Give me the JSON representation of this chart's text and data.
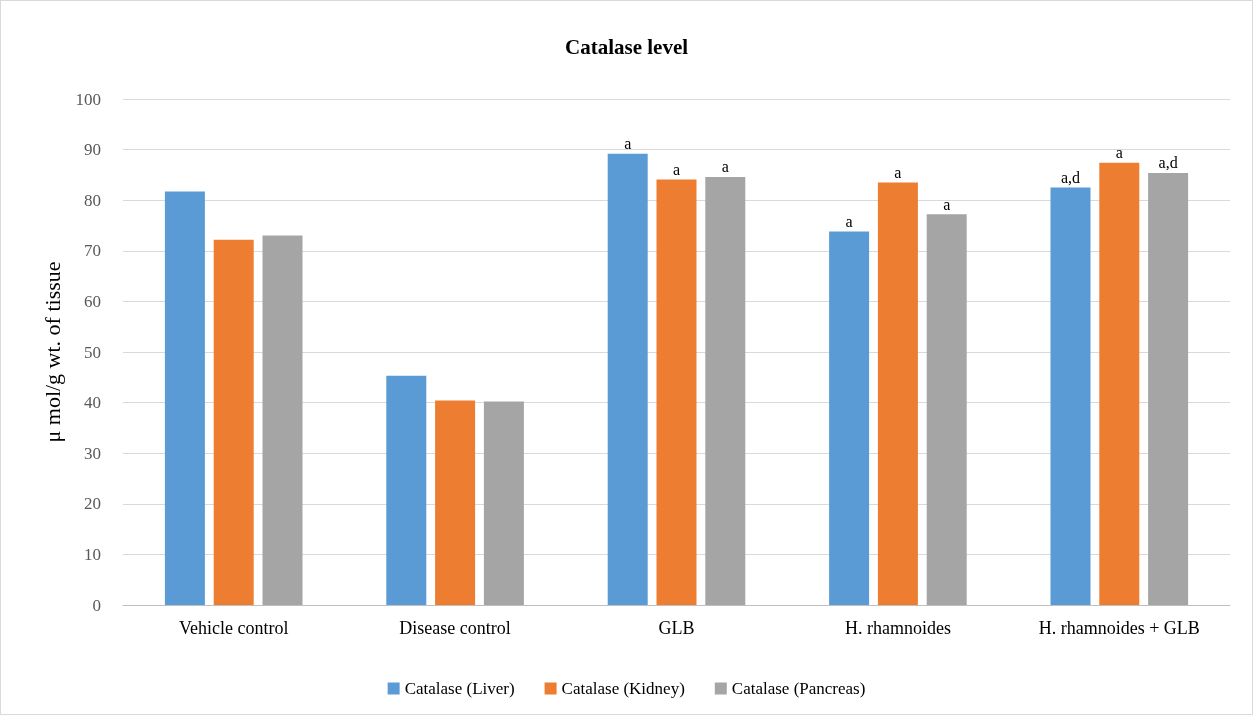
{
  "chart_data": {
    "type": "bar",
    "title": "Catalase level",
    "ylabel": "μ mol/g wt. of tissue",
    "categories": [
      "Vehicle control",
      "Disease control",
      "GLB",
      "H. rhamnoides",
      "H. rhamnoides + GLB"
    ],
    "series": [
      {
        "name": "Catalase (Liver)",
        "color": "#5b9bd5",
        "values": [
          81.7,
          45.3,
          89.2,
          73.8,
          82.5
        ],
        "value_labels": [
          null,
          null,
          "a",
          "a",
          "a,d"
        ]
      },
      {
        "name": "Catalase (Kidney)",
        "color": "#ed7d31",
        "values": [
          72.2,
          40.4,
          84.1,
          83.5,
          87.4
        ],
        "value_labels": [
          null,
          null,
          "a",
          "a",
          "a"
        ]
      },
      {
        "name": "Catalase (Pancreas)",
        "color": "#a5a5a5",
        "values": [
          73.0,
          40.2,
          84.6,
          77.2,
          85.4
        ],
        "value_labels": [
          null,
          null,
          "a",
          "a",
          "a,d"
        ]
      }
    ],
    "ylim": [
      0,
      100
    ],
    "yticks": [
      0,
      10,
      20,
      30,
      40,
      50,
      60,
      70,
      80,
      90,
      100
    ],
    "grid": "y",
    "legend": "bottom"
  }
}
